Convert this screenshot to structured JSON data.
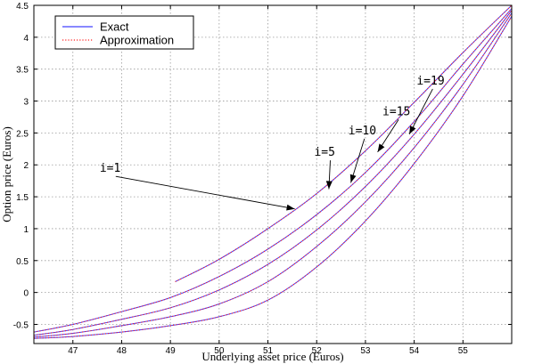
{
  "chart_data": {
    "type": "line",
    "xlabel": "Underlying asset price (Euros)",
    "ylabel": "Option price (Euros)",
    "xlim": [
      46.2,
      56.0
    ],
    "ylim": [
      -0.8,
      4.5
    ],
    "xticks": [
      47,
      48,
      49,
      50,
      51,
      52,
      53,
      54,
      55
    ],
    "yticks": [
      -0.5,
      0,
      0.5,
      1,
      1.5,
      2,
      2.5,
      3,
      3.5,
      4,
      4.5
    ],
    "ytick_labels": [
      "-0.5",
      "0",
      "0.5",
      "1",
      "1.5",
      "2",
      "2.5",
      "3",
      "3.5",
      "4",
      "4.5"
    ],
    "grid": true,
    "legend": {
      "placement": "top-left",
      "entries": [
        {
          "label": "Exact",
          "color": "#4040ff",
          "style": "solid"
        },
        {
          "label": "Approximation",
          "color": "#ff2020",
          "style": "dotted"
        }
      ]
    },
    "series": [
      {
        "x": [
          49.1,
          50.0,
          51.0,
          52.0,
          53.0,
          54.0,
          55.0,
          56.0
        ],
        "y": [
          0.17,
          0.52,
          1.0,
          1.55,
          2.22,
          2.98,
          3.76,
          4.5
        ]
      },
      {
        "x": [
          46.2,
          47.0,
          48.0,
          49.0,
          50.0,
          51.0,
          52.0,
          53.0,
          54.0,
          55.0,
          56.0
        ],
        "y": [
          -0.62,
          -0.5,
          -0.3,
          -0.08,
          0.25,
          0.68,
          1.22,
          1.88,
          2.68,
          3.58,
          4.45
        ]
      },
      {
        "x": [
          46.2,
          47.0,
          48.0,
          49.0,
          50.0,
          51.0,
          52.0,
          53.0,
          54.0,
          55.0,
          56.0
        ],
        "y": [
          -0.67,
          -0.58,
          -0.42,
          -0.24,
          0.04,
          0.44,
          0.98,
          1.66,
          2.48,
          3.42,
          4.42
        ]
      },
      {
        "x": [
          46.2,
          47.0,
          48.0,
          49.0,
          50.0,
          51.0,
          52.0,
          53.0,
          54.0,
          55.0,
          56.0
        ],
        "y": [
          -0.7,
          -0.64,
          -0.52,
          -0.38,
          -0.18,
          0.17,
          0.72,
          1.42,
          2.27,
          3.26,
          4.38
        ]
      },
      {
        "x": [
          46.2,
          47.0,
          48.0,
          49.0,
          50.0,
          51.0,
          52.0,
          53.0,
          54.0,
          55.0,
          56.0
        ],
        "y": [
          -0.72,
          -0.69,
          -0.62,
          -0.52,
          -0.38,
          -0.12,
          0.4,
          1.12,
          2.02,
          3.08,
          4.33
        ]
      }
    ],
    "annotations": [
      {
        "text": "i=1",
        "x": 47.55,
        "y": 1.89,
        "arrow_to": [
          51.55,
          1.31
        ]
      },
      {
        "text": "i=5",
        "x": 51.95,
        "y": 2.14,
        "arrow_to": [
          52.25,
          1.62
        ]
      },
      {
        "text": "i=10",
        "x": 52.65,
        "y": 2.48,
        "arrow_to": [
          52.7,
          1.72
        ]
      },
      {
        "text": "i=15",
        "x": 53.35,
        "y": 2.78,
        "arrow_to": [
          53.25,
          2.2
        ]
      },
      {
        "text": "i=19",
        "x": 54.05,
        "y": 3.26,
        "arrow_to": [
          53.9,
          2.48
        ]
      }
    ]
  }
}
